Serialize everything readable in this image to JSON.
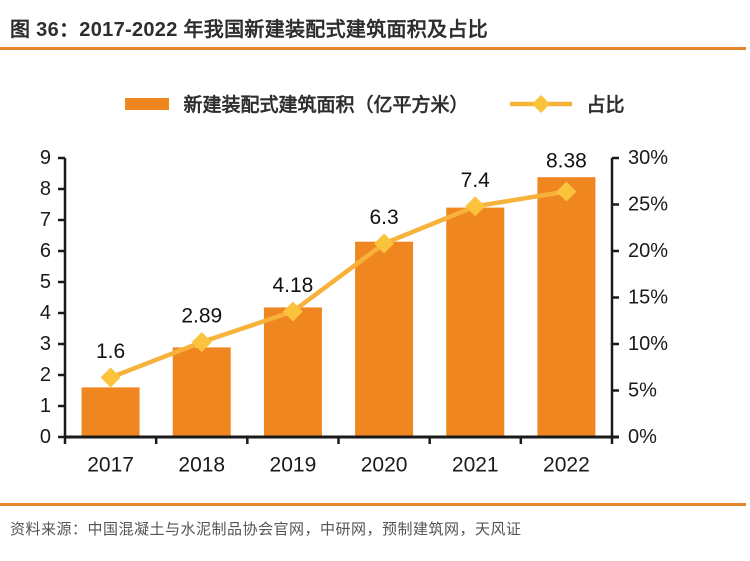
{
  "figure": {
    "title": "图 36：2017-2022 年我国新建装配式建筑面积及占比",
    "source": "资料来源：中国混凝土与水泥制品协会官网，中研网，预制建筑网，天风证"
  },
  "legend": {
    "bar_label": "新建装配式建筑面积（亿平方米）",
    "line_label": "占比"
  },
  "colors": {
    "bar": "#F0861F",
    "line": "#F7B23C",
    "marker": "#FBC23C",
    "axis": "#1A1A1A",
    "tick_label": "#1A1A1A",
    "value_label": "#111111",
    "rule": "#E8862B",
    "title_text": "#2E2E2E",
    "source_text": "#545454"
  },
  "chart_data": {
    "type": "combo-bar-line",
    "title": "2017-2022 年我国新建装配式建筑面积及占比",
    "categories": [
      "2017",
      "2018",
      "2019",
      "2020",
      "2021",
      "2022"
    ],
    "series": [
      {
        "name": "新建装配式建筑面积（亿平方米）",
        "type": "bar",
        "axis": "left",
        "values": [
          1.6,
          2.89,
          4.18,
          6.3,
          7.4,
          8.38
        ]
      },
      {
        "name": "占比",
        "type": "line",
        "axis": "right",
        "values_percent": [
          6.4,
          10.2,
          13.5,
          20.8,
          24.8,
          26.4
        ]
      }
    ],
    "bar_value_labels": [
      "1.6",
      "2.89",
      "4.18",
      "6.3",
      "7.4",
      "8.38"
    ],
    "left_axis": {
      "min": 0,
      "max": 9,
      "step": 1,
      "ticks": [
        "0",
        "1",
        "2",
        "3",
        "4",
        "5",
        "6",
        "7",
        "8",
        "9"
      ]
    },
    "right_axis": {
      "min": 0,
      "max": 30,
      "step": 5,
      "ticks": [
        "0%",
        "5%",
        "10%",
        "15%",
        "20%",
        "25%",
        "30%"
      ]
    },
    "grid": false,
    "legend_position": "top",
    "xlabel": "",
    "ylabel_left": "亿平方米",
    "ylabel_right": "%"
  }
}
